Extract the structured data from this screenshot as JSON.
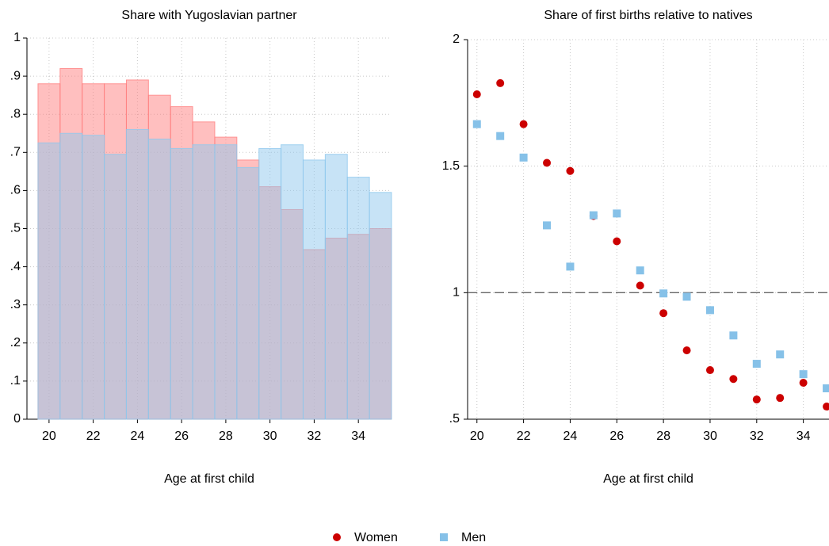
{
  "chart_data": [
    {
      "type": "bar",
      "title": "Share with Yugoslavian partner",
      "x_label": "Age at first child",
      "x": [
        20,
        21,
        22,
        23,
        24,
        25,
        26,
        27,
        28,
        29,
        30,
        31,
        32,
        33,
        34,
        35
      ],
      "series": [
        {
          "color": "#ff7f7f",
          "values": [
            0.88,
            0.92,
            0.88,
            0.88,
            0.89,
            0.85,
            0.82,
            0.78,
            0.74,
            0.68,
            0.61,
            0.55,
            0.445,
            0.475,
            0.485,
            0.5
          ]
        },
        {
          "color": "#8fc8ee",
          "values": [
            0.725,
            0.75,
            0.745,
            0.695,
            0.76,
            0.735,
            0.71,
            0.72,
            0.72,
            0.66,
            0.71,
            0.72,
            0.68,
            0.695,
            0.635,
            0.595
          ]
        }
      ],
      "opacity": 0.5,
      "xlim": [
        19,
        35.5
      ],
      "xticks": [
        20,
        22,
        24,
        26,
        28,
        30,
        32,
        34
      ],
      "ylim": [
        0,
        1
      ],
      "yticks": [
        0,
        {
          "value": 0.1,
          "label": ".1"
        },
        {
          "value": 0.2,
          "label": ".2"
        },
        {
          "value": 0.3,
          "label": ".3"
        },
        {
          "value": 0.4,
          "label": ".4"
        },
        {
          "value": 0.5,
          "label": ".5"
        },
        {
          "value": 0.6,
          "label": ".6"
        },
        {
          "value": 0.7,
          "label": ".7"
        },
        {
          "value": 0.8,
          "label": ".8"
        },
        {
          "value": 0.9,
          "label": ".9"
        },
        1
      ],
      "grid": true
    },
    {
      "type": "scatter",
      "title": "Share of first births relative to natives",
      "x_label": "Age at first child",
      "x": [
        20,
        21,
        22,
        23,
        24,
        25,
        26,
        27,
        28,
        29,
        30,
        31,
        32,
        33,
        34,
        35
      ],
      "series": [
        {
          "name": "Women",
          "color": "#cc0000",
          "marker": "circle",
          "values": [
            1.784,
            1.828,
            1.666,
            1.513,
            1.481,
            1.303,
            1.203,
            1.028,
            0.919,
            0.772,
            0.694,
            0.659,
            0.578,
            0.584,
            0.644,
            0.55
          ]
        },
        {
          "name": "Men",
          "color": "#86c1e8",
          "marker": "square",
          "values": [
            1.666,
            1.619,
            1.534,
            1.266,
            1.103,
            1.306,
            1.313,
            1.088,
            0.997,
            0.984,
            0.931,
            0.831,
            0.719,
            0.756,
            0.678,
            0.622
          ]
        }
      ],
      "refline": 1,
      "xlim": [
        19.6,
        35.1
      ],
      "xticks": [
        20,
        22,
        24,
        26,
        28,
        30,
        32,
        34
      ],
      "ylim": [
        0.5,
        2
      ],
      "yticks": [
        {
          "value": 0.5,
          "label": ".5"
        },
        1,
        1.5,
        2
      ],
      "grid": true
    }
  ]
}
